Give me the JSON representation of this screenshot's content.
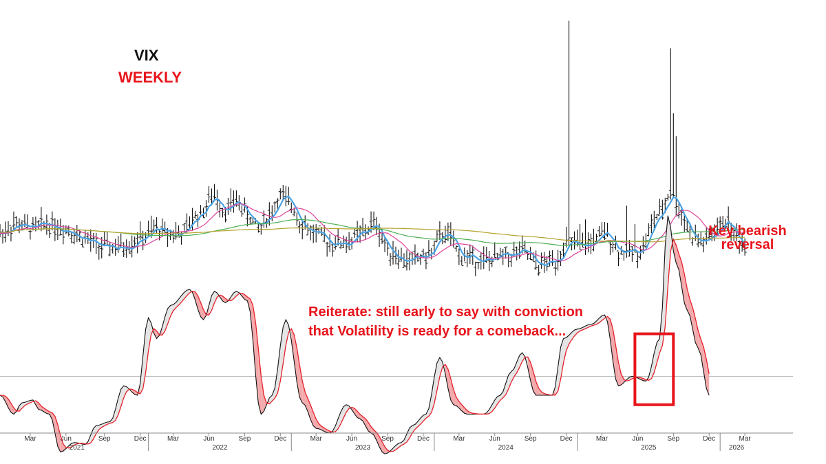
{
  "colors": {
    "accent_red": "#e8141b",
    "bars": "#111111",
    "ma_blue": "#4aa3e6",
    "ma_pink": "#e0439a",
    "ma_green": "#4caf50",
    "ma_olive": "#b5a22b",
    "osc_red": "#e5202a",
    "osc_fill_down": "#f3a9ab",
    "osc_fill_up": "#e4e4e4",
    "axis": "#888888"
  },
  "labels": {
    "instrument": "VIX",
    "timeframe": "WEEKLY",
    "key_reversal_1": "Key bearish",
    "key_reversal_2": "reversal",
    "note_1": "Reiterate: still early to say with conviction",
    "note_2": "that Volatility is ready for a comeback..."
  },
  "chart_data": {
    "type": "line",
    "title": "VIX WEEKLY",
    "xlabel": "",
    "ylabel": "",
    "x_range_weeks": [
      0,
      288
    ],
    "price_panel": {
      "ylim": [
        10,
        65
      ],
      "anchors": [
        [
          0,
          19
        ],
        [
          6,
          21
        ],
        [
          12,
          20
        ],
        [
          17,
          21
        ],
        [
          24,
          20
        ],
        [
          30,
          18
        ],
        [
          36,
          16
        ],
        [
          44,
          16
        ],
        [
          52,
          18
        ],
        [
          57,
          20
        ],
        [
          61,
          19
        ],
        [
          66,
          19
        ],
        [
          72,
          23
        ],
        [
          78,
          27
        ],
        [
          82,
          24
        ],
        [
          86,
          26
        ],
        [
          90,
          23
        ],
        [
          94,
          20
        ],
        [
          98,
          23
        ],
        [
          102,
          27
        ],
        [
          106,
          25
        ],
        [
          110,
          21
        ],
        [
          114,
          19
        ],
        [
          120,
          17
        ],
        [
          126,
          17
        ],
        [
          132,
          19
        ],
        [
          136,
          21
        ],
        [
          142,
          15
        ],
        [
          148,
          13
        ],
        [
          155,
          14
        ],
        [
          162,
          19
        ],
        [
          168,
          14
        ],
        [
          176,
          13
        ],
        [
          184,
          14
        ],
        [
          190,
          15
        ],
        [
          196,
          12
        ],
        [
          202,
          13
        ],
        [
          206,
          17
        ],
        [
          212,
          16
        ],
        [
          216,
          17
        ],
        [
          220,
          19
        ],
        [
          226,
          15
        ],
        [
          232,
          15
        ],
        [
          240,
          23
        ],
        [
          244,
          28
        ],
        [
          248,
          23
        ],
        [
          252,
          18
        ],
        [
          256,
          17
        ],
        [
          260,
          19
        ],
        [
          264,
          22
        ],
        [
          268,
          18
        ],
        [
          271,
          16
        ]
      ],
      "spikes": [
        [
          207,
          65
        ],
        [
          244,
          59
        ],
        [
          245,
          45
        ],
        [
          246,
          40
        ],
        [
          228,
          25
        ],
        [
          235,
          19
        ],
        [
          211,
          21
        ],
        [
          213,
          22
        ],
        [
          216,
          20
        ],
        [
          231,
          21
        ]
      ],
      "moving_averages": [
        {
          "name": "MA blue",
          "color": "#4aa3e6",
          "period": 4
        },
        {
          "name": "MA pink",
          "color": "#e0439a",
          "period": 13
        },
        {
          "name": "MA green",
          "color": "#4caf50",
          "period": 40
        },
        {
          "name": "MA olive",
          "color": "#b5a22b",
          "period": 100
        }
      ]
    },
    "oscillator_panel": {
      "ylim": [
        -100,
        100
      ],
      "zero_line": 0,
      "anchors": [
        [
          0,
          -20
        ],
        [
          5,
          -40
        ],
        [
          8,
          -28
        ],
        [
          12,
          -25
        ],
        [
          14,
          -35
        ],
        [
          18,
          -40
        ],
        [
          22,
          -80
        ],
        [
          27,
          -70
        ],
        [
          31,
          -72
        ],
        [
          35,
          -52
        ],
        [
          40,
          -48
        ],
        [
          45,
          -10
        ],
        [
          50,
          -20
        ],
        [
          54,
          62
        ],
        [
          57,
          40
        ],
        [
          62,
          75
        ],
        [
          69,
          92
        ],
        [
          74,
          60
        ],
        [
          78,
          90
        ],
        [
          82,
          78
        ],
        [
          86,
          90
        ],
        [
          90,
          80
        ],
        [
          95,
          -40
        ],
        [
          99,
          -20
        ],
        [
          104,
          60
        ],
        [
          110,
          -28
        ],
        [
          115,
          -55
        ],
        [
          120,
          -60
        ],
        [
          126,
          -30
        ],
        [
          131,
          -45
        ],
        [
          135,
          -60
        ],
        [
          140,
          -82
        ],
        [
          146,
          -70
        ],
        [
          150,
          -52
        ],
        [
          155,
          -40
        ],
        [
          160,
          20
        ],
        [
          165,
          -30
        ],
        [
          170,
          -40
        ],
        [
          176,
          -40
        ],
        [
          182,
          -20
        ],
        [
          186,
          5
        ],
        [
          190,
          25
        ],
        [
          195,
          -20
        ],
        [
          201,
          -20
        ],
        [
          205,
          40
        ],
        [
          210,
          50
        ],
        [
          215,
          55
        ],
        [
          220,
          65
        ],
        [
          225,
          -10
        ],
        [
          230,
          0
        ],
        [
          235,
          -5
        ],
        [
          240,
          40
        ],
        [
          243,
          170
        ],
        [
          246,
          120
        ],
        [
          250,
          70
        ],
        [
          254,
          30
        ],
        [
          258,
          -20
        ]
      ],
      "signal_smoothing": 3
    },
    "x_axis": {
      "months": [
        {
          "label": "Mar",
          "week": 11
        },
        {
          "label": "Jun",
          "week": 24
        },
        {
          "label": "Sep",
          "week": 38
        },
        {
          "label": "Dec",
          "week": 51
        },
        {
          "label": "Mar",
          "week": 63
        },
        {
          "label": "Jun",
          "week": 76
        },
        {
          "label": "Sep",
          "week": 89
        },
        {
          "label": "Dec",
          "week": 102
        },
        {
          "label": "Mar",
          "week": 115
        },
        {
          "label": "Jun",
          "week": 128
        },
        {
          "label": "Sep",
          "week": 141
        },
        {
          "label": "Dec",
          "week": 154
        },
        {
          "label": "Mar",
          "week": 167
        },
        {
          "label": "Jun",
          "week": 180
        },
        {
          "label": "Sep",
          "week": 193
        },
        {
          "label": "Dec",
          "week": 206
        },
        {
          "label": "Mar",
          "week": 219
        },
        {
          "label": "Jun",
          "week": 232
        },
        {
          "label": "Sep",
          "week": 245
        },
        {
          "label": "Dec",
          "week": 258
        },
        {
          "label": "Mar",
          "week": 271
        }
      ],
      "years": [
        {
          "label": "2021",
          "week": 28
        },
        {
          "label": "2022",
          "week": 80
        },
        {
          "label": "2023",
          "week": 132
        },
        {
          "label": "2024",
          "week": 184
        },
        {
          "label": "2025",
          "week": 236
        },
        {
          "label": "2026",
          "week": 268
        }
      ],
      "year_dividers": [
        54,
        106,
        158,
        210,
        262
      ]
    },
    "annotations": [
      {
        "text": "Key bearish reversal",
        "at_week": 236
      },
      {
        "type": "highlight-box",
        "week_range": [
          231,
          245
        ]
      }
    ]
  }
}
